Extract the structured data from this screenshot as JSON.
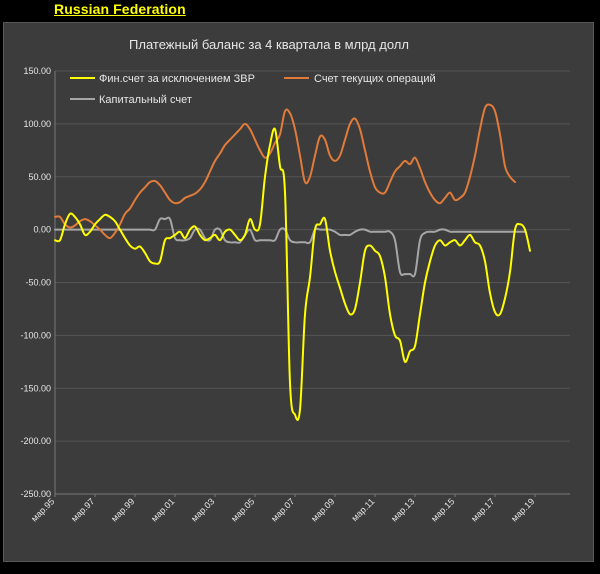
{
  "header": {
    "title": "Russian Federation"
  },
  "chart_data": {
    "type": "line",
    "title": "Платежный баланс за 4 квартала в млрд долл",
    "ylim": [
      -250,
      150
    ],
    "yticks": [
      "150.00",
      "100.00",
      "50.00",
      "0.00",
      "-50.00",
      "-100.00",
      "-150.00",
      "-200.00",
      "-250.00"
    ],
    "ytick_values": [
      150,
      100,
      50,
      0,
      -50,
      -100,
      -150,
      -200,
      -250
    ],
    "xlim": [
      0,
      103
    ],
    "xticks": [
      "мар.95",
      "мар.97",
      "мар.99",
      "мар.01",
      "мар.03",
      "мар.05",
      "мар.07",
      "мар.09",
      "мар.11",
      "мар.13",
      "мар.15",
      "мар.17",
      "мар.19"
    ],
    "grid": true,
    "legend_position": "top",
    "series": [
      {
        "name": "Фин.счет за исключением ЗВР",
        "color": "#ffff00",
        "x": [
          0,
          1,
          2,
          3,
          4,
          5,
          6,
          7,
          8,
          9,
          10,
          11,
          12,
          13,
          14,
          15,
          16,
          17,
          18,
          19,
          20,
          21,
          22,
          23,
          24,
          25,
          26,
          27,
          28,
          29,
          30,
          31,
          32,
          33,
          34,
          35,
          36,
          37,
          38,
          39,
          40,
          41,
          42,
          43,
          44,
          45,
          46,
          47,
          48,
          49,
          50,
          51,
          52,
          53,
          54,
          55,
          56,
          57,
          58,
          59,
          60,
          61,
          62,
          63,
          64,
          65,
          66,
          67,
          68,
          69,
          70,
          71,
          72,
          73,
          74,
          75,
          76,
          77,
          78,
          79,
          80,
          81,
          82,
          83,
          84,
          85,
          86,
          87,
          88,
          89,
          90,
          91,
          92,
          93,
          94,
          95,
          96,
          97,
          98,
          99,
          100,
          101,
          102,
          103
        ],
        "values": [
          -10,
          -10,
          5,
          15,
          12,
          5,
          -5,
          -2,
          5,
          10,
          14,
          12,
          8,
          0,
          -8,
          -15,
          -18,
          -16,
          -22,
          -30,
          -32,
          -30,
          -10,
          -8,
          -5,
          -2,
          -8,
          0,
          3,
          -5,
          -10,
          -8,
          -5,
          -10,
          -2,
          0,
          -5,
          -10,
          -5,
          10,
          0,
          5,
          50,
          80,
          95,
          60,
          35,
          -145,
          -175,
          -170,
          -80,
          -45,
          0,
          5,
          10,
          -20,
          -40,
          -55,
          -70,
          -80,
          -75,
          -50,
          -20,
          -15,
          -20,
          -25,
          -45,
          -80,
          -100,
          -105,
          -125,
          -115,
          -110,
          -80,
          -50,
          -30,
          -15,
          -10,
          -15,
          -12,
          -10,
          -15,
          -10,
          -5,
          -12,
          -15,
          -30,
          -60,
          -78,
          -80,
          -65,
          -40,
          0,
          5,
          0,
          -20,
          null,
          null,
          null,
          null,
          null,
          null,
          null,
          null
        ]
      },
      {
        "name": "Счет текущих операций",
        "color": "#e07b39",
        "x": [
          0,
          1,
          2,
          3,
          4,
          5,
          6,
          7,
          8,
          9,
          10,
          11,
          12,
          13,
          14,
          15,
          16,
          17,
          18,
          19,
          20,
          21,
          22,
          23,
          24,
          25,
          26,
          27,
          28,
          29,
          30,
          31,
          32,
          33,
          34,
          35,
          36,
          37,
          38,
          39,
          40,
          41,
          42,
          43,
          44,
          45,
          46,
          47,
          48,
          49,
          50,
          51,
          52,
          53,
          54,
          55,
          56,
          57,
          58,
          59,
          60,
          61,
          62,
          63,
          64,
          65,
          66,
          67,
          68,
          69,
          70,
          71,
          72,
          73,
          74,
          75,
          76,
          77,
          78,
          79,
          80,
          81,
          82,
          83,
          84,
          85,
          86,
          87,
          88,
          89,
          90,
          91,
          92,
          93,
          94,
          95,
          96,
          97,
          98,
          99,
          100,
          101,
          102,
          103
        ],
        "values": [
          12,
          12,
          5,
          2,
          4,
          8,
          10,
          8,
          4,
          0,
          -5,
          -8,
          -3,
          5,
          15,
          20,
          28,
          35,
          40,
          45,
          46,
          42,
          35,
          28,
          25,
          26,
          30,
          32,
          34,
          38,
          45,
          55,
          65,
          72,
          80,
          85,
          90,
          95,
          100,
          95,
          85,
          75,
          68,
          72,
          82,
          90,
          112,
          110,
          95,
          70,
          45,
          50,
          70,
          88,
          85,
          70,
          65,
          70,
          85,
          100,
          105,
          95,
          75,
          55,
          40,
          35,
          35,
          45,
          55,
          60,
          65,
          62,
          68,
          58,
          45,
          35,
          28,
          25,
          30,
          35,
          28,
          30,
          35,
          50,
          70,
          95,
          115,
          118,
          112,
          90,
          60,
          50,
          45,
          null,
          null,
          null,
          null,
          null,
          null,
          null,
          null,
          null,
          null,
          null
        ]
      },
      {
        "name": "Капитальный счет",
        "color": "#a6a6a6",
        "x": [
          0,
          1,
          2,
          3,
          4,
          5,
          6,
          7,
          8,
          9,
          10,
          11,
          12,
          13,
          14,
          15,
          16,
          17,
          18,
          19,
          20,
          21,
          22,
          23,
          24,
          25,
          26,
          27,
          28,
          29,
          30,
          31,
          32,
          33,
          34,
          35,
          36,
          37,
          38,
          39,
          40,
          41,
          42,
          43,
          44,
          45,
          46,
          47,
          48,
          49,
          50,
          51,
          52,
          53,
          54,
          55,
          56,
          57,
          58,
          59,
          60,
          61,
          62,
          63,
          64,
          65,
          66,
          67,
          68,
          69,
          70,
          71,
          72,
          73,
          74,
          75,
          76,
          77,
          78,
          79,
          80,
          81,
          82,
          83,
          84,
          85,
          86,
          87,
          88,
          89,
          90,
          91,
          92,
          93,
          94,
          95,
          96,
          97,
          98,
          99,
          100,
          101,
          102,
          103
        ],
        "values": [
          0,
          0,
          0,
          0,
          0,
          0,
          0,
          0,
          0,
          0,
          0,
          0,
          0,
          0,
          0,
          0,
          0,
          0,
          0,
          0,
          0,
          10,
          10,
          10,
          -8,
          -10,
          -10,
          -8,
          0,
          0,
          -8,
          -10,
          0,
          0,
          -10,
          -12,
          -12,
          -12,
          -5,
          0,
          -10,
          -10,
          -10,
          -10,
          -10,
          0,
          0,
          -10,
          -12,
          -12,
          -12,
          -12,
          0,
          0,
          0,
          0,
          -2,
          -5,
          -5,
          -5,
          -2,
          0,
          0,
          -2,
          -2,
          -2,
          -2,
          -2,
          -10,
          -40,
          -42,
          -42,
          -42,
          -10,
          -3,
          -2,
          -2,
          0,
          0,
          -2,
          -2,
          -2,
          -2,
          -2,
          -2,
          -2,
          -2,
          -2,
          -2,
          -2,
          -2,
          -2,
          -2,
          -2,
          -2,
          null,
          null,
          null,
          null,
          null,
          null,
          null,
          null,
          null
        ]
      }
    ]
  }
}
